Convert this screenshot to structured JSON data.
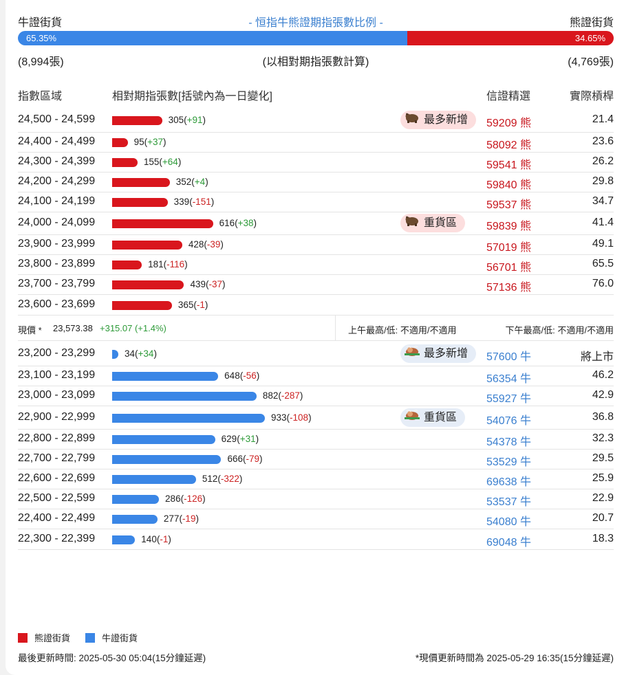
{
  "header": {
    "bull_label": "牛證街貨",
    "title": "- 恒指牛熊證期指張數比例 -",
    "bear_label": "熊證街貨",
    "bull_pct": "65.35%",
    "bear_pct": "34.65%",
    "bull_fraction": 0.6535,
    "bull_count": "(8,994張)",
    "note": "(以相對期指張數計算)",
    "bear_count": "(4,769張)"
  },
  "columns": {
    "range": "指數區域",
    "contracts": "相對期指張數[括號內為一日變化]",
    "pick": "信證精選",
    "leverage": "實際槓桿"
  },
  "tags": {
    "most_new": "最多新增",
    "heavy": "重貨區"
  },
  "bear_rows": [
    {
      "range": "24,500 - 24,599",
      "count": "305",
      "change": "+91",
      "code": "59209 熊",
      "leverage": "21.4",
      "tag": "most_new"
    },
    {
      "range": "24,400 - 24,499",
      "count": "95",
      "change": "+37",
      "code": "58092 熊",
      "leverage": "23.6"
    },
    {
      "range": "24,300 - 24,399",
      "count": "155",
      "change": "+64",
      "code": "59541 熊",
      "leverage": "26.2"
    },
    {
      "range": "24,200 - 24,299",
      "count": "352",
      "change": "+4",
      "code": "59840 熊",
      "leverage": "29.8"
    },
    {
      "range": "24,100 - 24,199",
      "count": "339",
      "change": "-151",
      "code": "59537 熊",
      "leverage": "34.7"
    },
    {
      "range": "24,000 - 24,099",
      "count": "616",
      "change": "+38",
      "code": "59839 熊",
      "leverage": "41.4",
      "tag": "heavy"
    },
    {
      "range": "23,900 - 23,999",
      "count": "428",
      "change": "-39",
      "code": "57019 熊",
      "leverage": "49.1"
    },
    {
      "range": "23,800 - 23,899",
      "count": "181",
      "change": "-116",
      "code": "56701 熊",
      "leverage": "65.5"
    },
    {
      "range": "23,700 - 23,799",
      "count": "439",
      "change": "-37",
      "code": "57136 熊",
      "leverage": "76.0"
    },
    {
      "range": "23,600 - 23,699",
      "count": "365",
      "change": "-1",
      "code": "",
      "leverage": ""
    }
  ],
  "price": {
    "label": "現價 *",
    "value": "23,573.38",
    "change": "+315.07 (+1.4%)",
    "am": "上午最高/低: 不適用/不適用",
    "pm": "下午最高/低: 不適用/不適用"
  },
  "bull_rows": [
    {
      "range": "23,200 - 23,299",
      "count": "34",
      "change": "+34",
      "code": "57600 牛",
      "leverage": "將上市",
      "tag": "most_new"
    },
    {
      "range": "23,100 - 23,199",
      "count": "648",
      "change": "-56",
      "code": "56354 牛",
      "leverage": "46.2"
    },
    {
      "range": "23,000 - 23,099",
      "count": "882",
      "change": "-287",
      "code": "55927 牛",
      "leverage": "42.9"
    },
    {
      "range": "22,900 - 22,999",
      "count": "933",
      "change": "-108",
      "code": "54076 牛",
      "leverage": "36.8",
      "tag": "heavy"
    },
    {
      "range": "22,800 - 22,899",
      "count": "629",
      "change": "+31",
      "code": "54378 牛",
      "leverage": "32.3"
    },
    {
      "range": "22,700 - 22,799",
      "count": "666",
      "change": "-79",
      "code": "53529 牛",
      "leverage": "29.5"
    },
    {
      "range": "22,600 - 22,699",
      "count": "512",
      "change": "-322",
      "code": "69638 牛",
      "leverage": "25.9"
    },
    {
      "range": "22,500 - 22,599",
      "count": "286",
      "change": "-126",
      "code": "53537 牛",
      "leverage": "22.9"
    },
    {
      "range": "22,400 - 22,499",
      "count": "277",
      "change": "-19",
      "code": "54080 牛",
      "leverage": "20.7"
    },
    {
      "range": "22,300 - 22,399",
      "count": "140",
      "change": "-1",
      "code": "69048 牛",
      "leverage": "18.3"
    }
  ],
  "legend": {
    "bear": "熊證街貨",
    "bull": "牛證街貨"
  },
  "colors": {
    "bear": "#d9161d",
    "bull": "#3a86e6"
  },
  "footer": {
    "updated": "最後更新時間: 2025-05-30 05:04(15分鐘延遲)",
    "price_updated": "*現價更新時間為 2025-05-29 16:35(15分鐘延遲)"
  }
}
